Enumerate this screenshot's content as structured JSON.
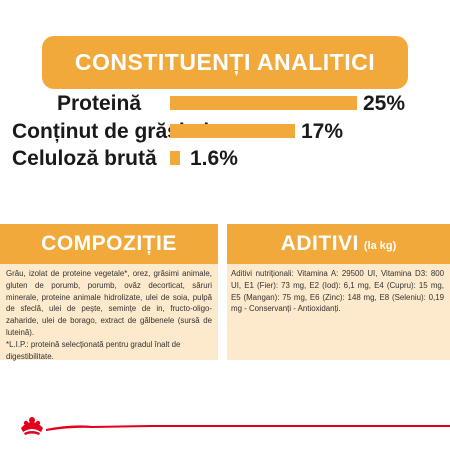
{
  "header": {
    "title": "CONSTITUENȚI ANALITICI"
  },
  "analytics": [
    {
      "label": "Proteină",
      "value": "25%",
      "level": 25
    },
    {
      "label": "Conținut de grăsimi",
      "value": "17%",
      "level": 17
    },
    {
      "label": "Celuloză brută",
      "value": "1.6%",
      "level": 1.6
    }
  ],
  "composition": {
    "title": "COMPOZIȚIE",
    "text": "Grâu, izolat de proteine vegetale*, orez, grăsimi animale, gluten de porumb, porumb, ovăz decorticat, săruri minerale, proteine animale hidrolizate, ulei de soia, pulpă de sfeclă, ulei de pește, semințe de in, fructo-oligo-zaharide, ulei de borago, extract de gălbenele (sursă de luteină).",
    "note": "*L.I.P.: proteină selecționată pentru gradul înalt de digestibilitate."
  },
  "additives": {
    "title": "ADITIVI",
    "unit": "(la kg)",
    "text": "Aditivi nutriționali: Vitamina A: 29500 UI, Vitamina D3: 800 UI, E1 (Fier): 73 mg, E2 (Iod): 6,1 mg, E4 (Cupru): 15 mg, E5 (Mangan): 75 mg, E6 (Zinc): 148 mg, E8 (Seleniu): 0,19 mg - Conservanți - Antioxidanți."
  },
  "colors": {
    "accent": "#f2a93b",
    "panel_bg": "#fde9cc",
    "brand_red": "#e2001a",
    "text": "#1a1a1a"
  },
  "footer": {
    "logo_icon": "royal-canin-crown-logo-icon"
  }
}
